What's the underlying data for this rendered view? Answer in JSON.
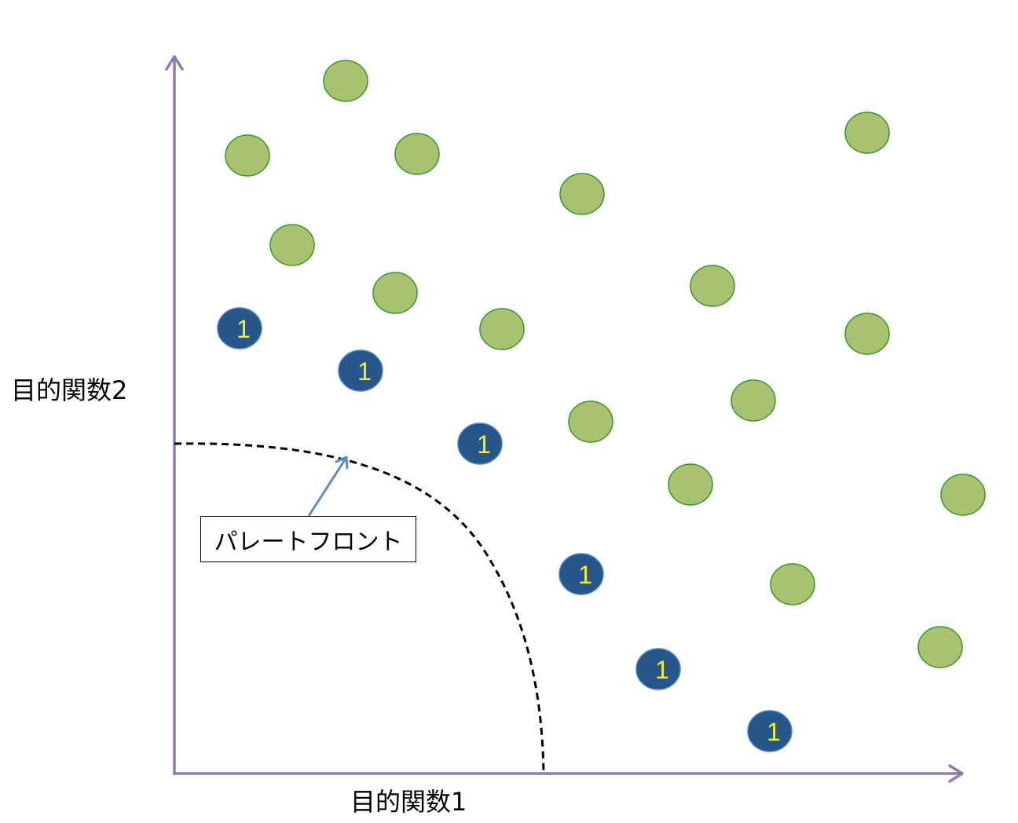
{
  "axes": {
    "x_label": "目的関数1",
    "y_label": "目的関数2"
  },
  "callout": {
    "text": "パレートフロント"
  },
  "rank_label": "1",
  "colors": {
    "axis": "#8f7bb0",
    "dominated_fill": "#a9c26f",
    "dominated_stroke": "#2e9a2e",
    "rank1_fill": "#26568a",
    "rank1_stroke": "#4a86c8",
    "rank1_text": "#f5f21a",
    "front_line": "#000000",
    "callout_arrow": "#5a8fc4"
  }
}
